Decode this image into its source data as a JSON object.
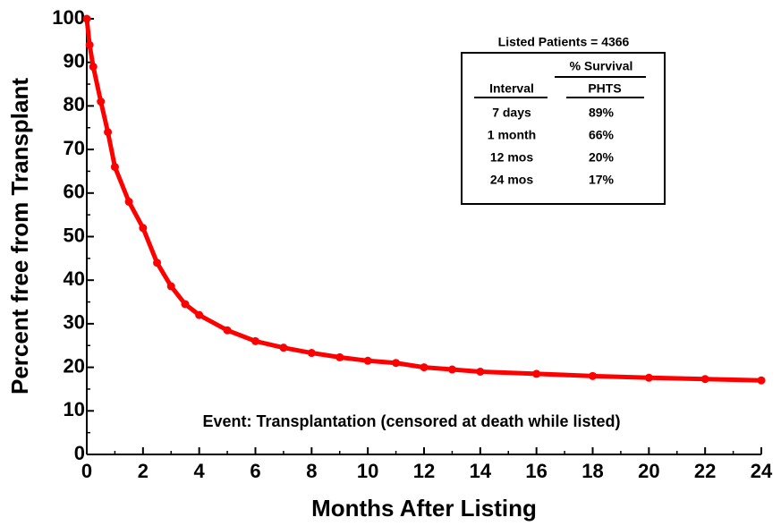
{
  "chart_data": {
    "type": "line",
    "xlabel": "Months After Listing",
    "ylabel": "Percent free from Transplant",
    "annotation": "Event: Transplantation (censored at death while listed)",
    "x": [
      0,
      0.1,
      0.23,
      0.5,
      0.75,
      1,
      1.5,
      2,
      2.5,
      3,
      3.5,
      4,
      5,
      6,
      7,
      8,
      9,
      10,
      11,
      12,
      13,
      14,
      16,
      18,
      20,
      22,
      24
    ],
    "series": [
      {
        "name": "PHTS",
        "color": "#ff0000",
        "values": [
          100,
          94,
          89,
          81,
          74,
          66,
          58,
          52,
          44,
          38.6,
          34.5,
          32,
          28.5,
          26,
          24.5,
          23.3,
          22.3,
          21.5,
          21,
          20,
          19.5,
          19,
          18.5,
          18,
          17.6,
          17.3,
          17
        ]
      }
    ],
    "xlim": [
      0,
      24
    ],
    "xticks": [
      0,
      2,
      4,
      6,
      8,
      10,
      12,
      14,
      16,
      18,
      20,
      22,
      24
    ],
    "ylim": [
      0,
      100
    ],
    "yticks": [
      0,
      10,
      20,
      30,
      40,
      50,
      60,
      70,
      80,
      90,
      100
    ],
    "table": {
      "title": "Listed Patients = 4366",
      "group_header": "% Survival",
      "columns": [
        "Interval",
        "PHTS"
      ],
      "rows": [
        [
          "7 days",
          "89%"
        ],
        [
          "1 month",
          "66%"
        ],
        [
          "12 mos",
          "20%"
        ],
        [
          "24 mos",
          "17%"
        ]
      ]
    }
  }
}
